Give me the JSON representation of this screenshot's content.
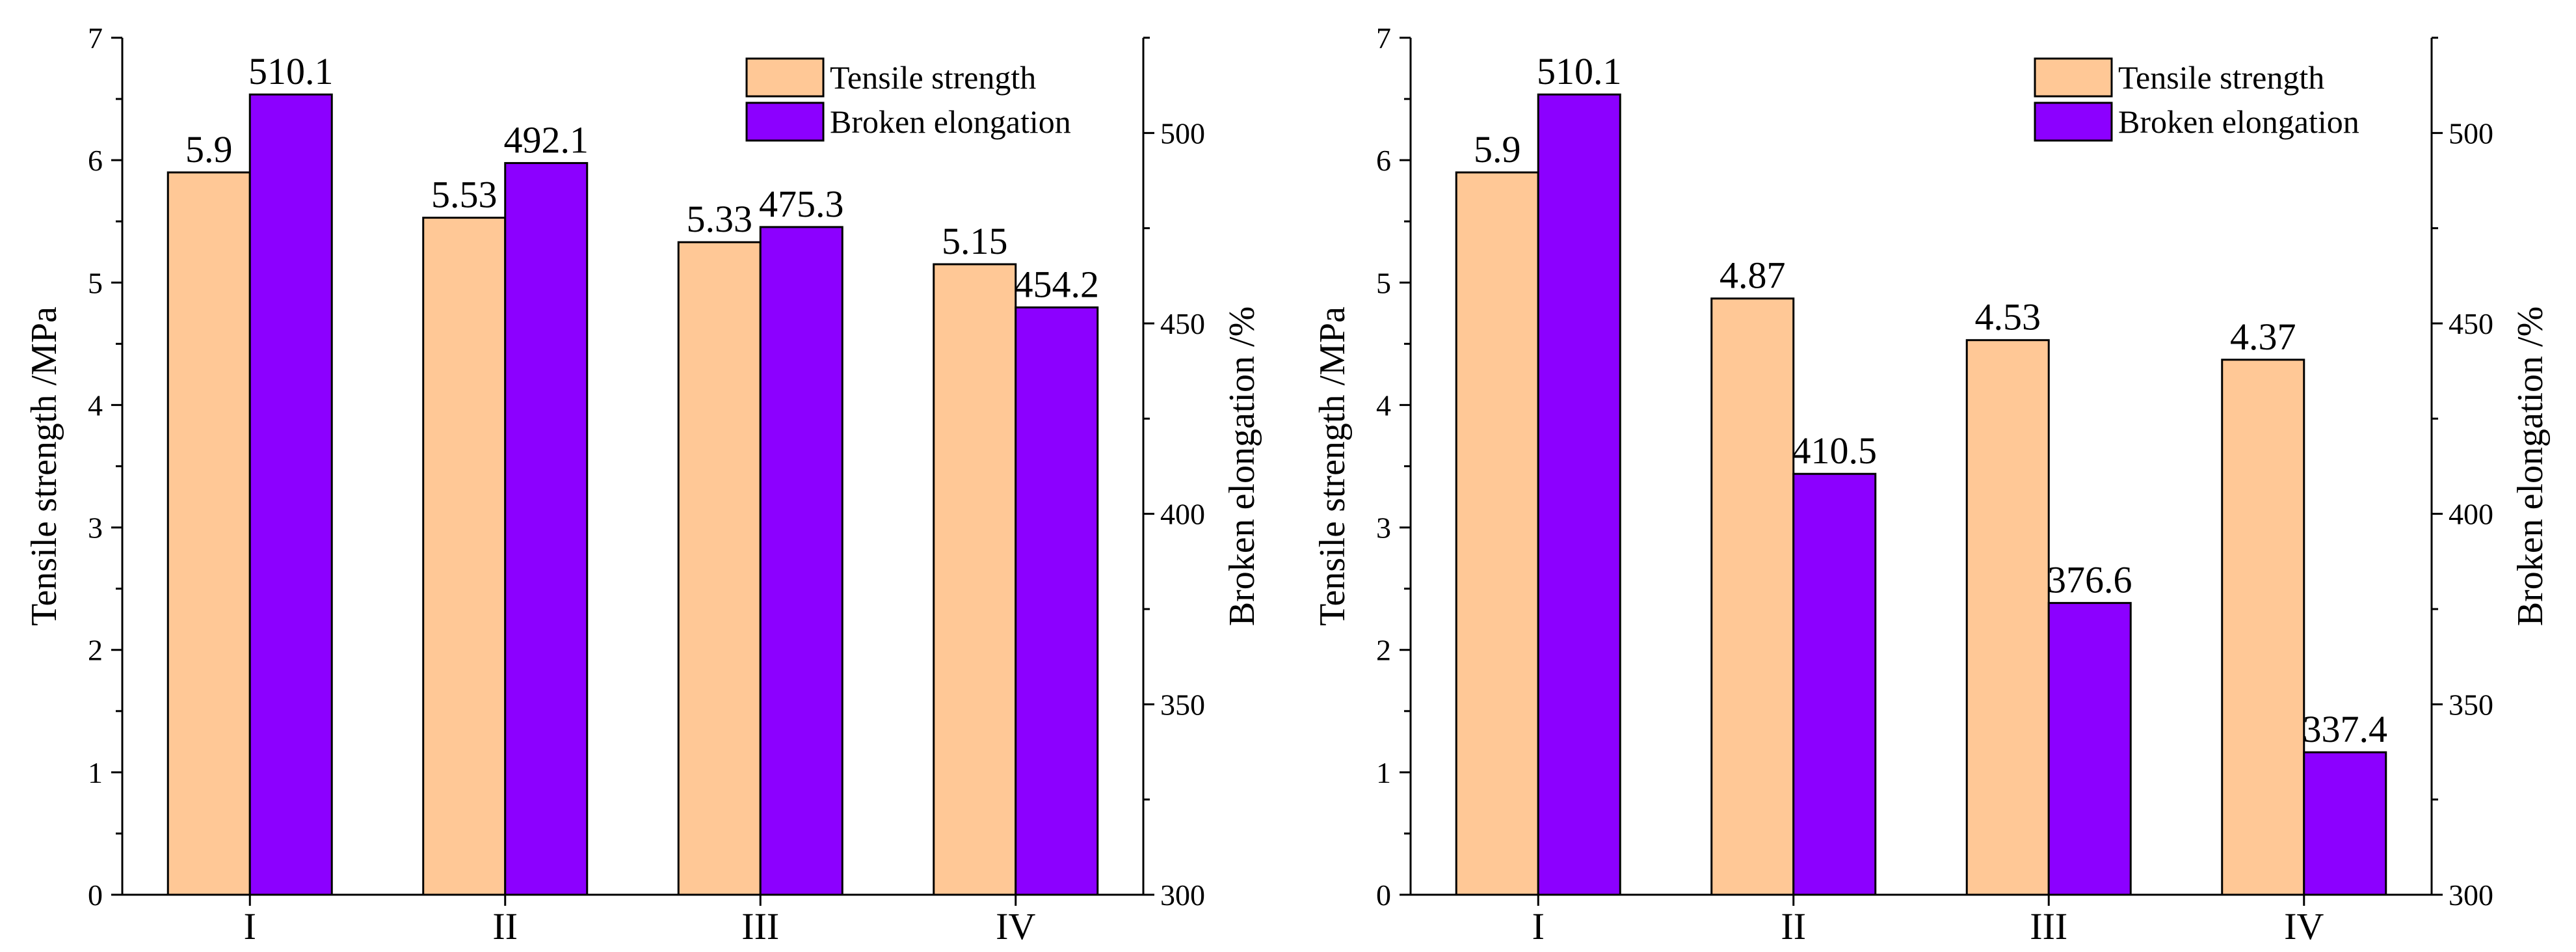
{
  "chart_data": [
    {
      "type": "bar",
      "categories": [
        "I",
        "II",
        "III",
        "IV"
      ],
      "series": [
        {
          "name": "Tensile strength",
          "axis": "left",
          "color": "#FFC896",
          "values": [
            5.9,
            5.53,
            5.33,
            5.15
          ],
          "labels": [
            "5.9",
            "5.53",
            "5.33",
            "5.15"
          ]
        },
        {
          "name": "Broken elongation",
          "axis": "right",
          "color": "#8C00FF",
          "values": [
            510.1,
            492.1,
            475.3,
            454.2
          ],
          "labels": [
            "510.1",
            "492.1",
            "475.3",
            "454.2"
          ]
        }
      ],
      "ylabel": "Tensile strength /MPa",
      "ylim": [
        0,
        7
      ],
      "yticks": [
        "0",
        "1",
        "2",
        "3",
        "4",
        "5",
        "6",
        "7"
      ],
      "y2label": "Broken elongation /%",
      "y2lim": [
        300,
        525
      ],
      "y2ticks": [
        "300",
        "350",
        "400",
        "450",
        "500"
      ],
      "legend": [
        "Tensile strength",
        "Broken elongation"
      ],
      "legend_position": "top-right",
      "grid": false
    },
    {
      "type": "bar",
      "categories": [
        "I",
        "II",
        "III",
        "IV"
      ],
      "series": [
        {
          "name": "Tensile strength",
          "axis": "left",
          "color": "#FFC896",
          "values": [
            5.9,
            4.87,
            4.53,
            4.37
          ],
          "labels": [
            "5.9",
            "4.87",
            "4.53",
            "4.37"
          ]
        },
        {
          "name": "Broken elongation",
          "axis": "right",
          "color": "#8C00FF",
          "values": [
            510.1,
            410.5,
            376.6,
            337.4
          ],
          "labels": [
            "510.1",
            "410.5",
            "376.6",
            "337.4"
          ]
        }
      ],
      "ylabel": "Tensile strength /MPa",
      "ylim": [
        0,
        7
      ],
      "yticks": [
        "0",
        "1",
        "2",
        "3",
        "4",
        "5",
        "6",
        "7"
      ],
      "y2label": "Broken elongation /%",
      "y2lim": [
        300,
        525
      ],
      "y2ticks": [
        "300",
        "350",
        "400",
        "450",
        "500"
      ],
      "legend": [
        "Tensile strength",
        "Broken elongation"
      ],
      "legend_position": "top-right",
      "grid": false
    }
  ]
}
